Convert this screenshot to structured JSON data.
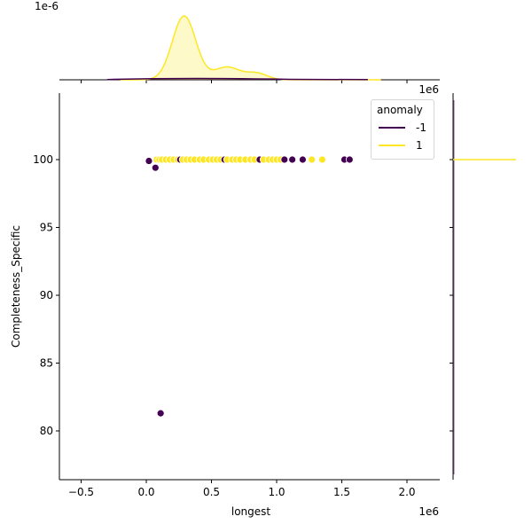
{
  "chart_data": {
    "type": "scatter",
    "title": "",
    "xlabel": "longest",
    "ylabel": "Completeness_Specific",
    "x_offset_label": "1e6",
    "top_marginal_offset_label": "1e-6",
    "top_marginal_x_offset_label": "1e6",
    "xlim": [
      -0.67,
      2.25
    ],
    "ylim": [
      76.5,
      104.8
    ],
    "x_ticks": [
      "-0.5",
      "0.0",
      "0.5",
      "1.0",
      "1.5",
      "2.0"
    ],
    "y_ticks": [
      "80",
      "85",
      "90",
      "95",
      "100"
    ],
    "legend": {
      "title": "anomaly",
      "position": "upper right",
      "entries": [
        {
          "label": "-1",
          "color": "#440154"
        },
        {
          "label": "1",
          "color": "#fde725"
        }
      ]
    },
    "series": [
      {
        "name": "-1",
        "color": "#440154",
        "points": [
          {
            "x": 0.02,
            "y": 99.9
          },
          {
            "x": 0.07,
            "y": 99.4
          },
          {
            "x": 0.11,
            "y": 81.3
          },
          {
            "x": 0.26,
            "y": 100
          },
          {
            "x": 0.6,
            "y": 100
          },
          {
            "x": 0.87,
            "y": 100
          },
          {
            "x": 1.06,
            "y": 100
          },
          {
            "x": 1.12,
            "y": 100
          },
          {
            "x": 1.2,
            "y": 100
          },
          {
            "x": 1.52,
            "y": 100
          },
          {
            "x": 1.56,
            "y": 100
          }
        ]
      },
      {
        "name": "1",
        "color": "#fde725",
        "points": [
          {
            "x": 0.08,
            "y": 100
          },
          {
            "x": 0.1,
            "y": 100
          },
          {
            "x": 0.12,
            "y": 100
          },
          {
            "x": 0.15,
            "y": 100
          },
          {
            "x": 0.18,
            "y": 100
          },
          {
            "x": 0.21,
            "y": 100
          },
          {
            "x": 0.24,
            "y": 100
          },
          {
            "x": 0.28,
            "y": 100
          },
          {
            "x": 0.31,
            "y": 100
          },
          {
            "x": 0.34,
            "y": 100
          },
          {
            "x": 0.37,
            "y": 100
          },
          {
            "x": 0.41,
            "y": 100
          },
          {
            "x": 0.44,
            "y": 100
          },
          {
            "x": 0.48,
            "y": 100
          },
          {
            "x": 0.51,
            "y": 100
          },
          {
            "x": 0.54,
            "y": 100
          },
          {
            "x": 0.57,
            "y": 100
          },
          {
            "x": 0.62,
            "y": 100
          },
          {
            "x": 0.66,
            "y": 100
          },
          {
            "x": 0.69,
            "y": 100
          },
          {
            "x": 0.72,
            "y": 100
          },
          {
            "x": 0.76,
            "y": 100
          },
          {
            "x": 0.8,
            "y": 100
          },
          {
            "x": 0.83,
            "y": 100
          },
          {
            "x": 0.9,
            "y": 100
          },
          {
            "x": 0.94,
            "y": 100
          },
          {
            "x": 0.97,
            "y": 100
          },
          {
            "x": 1.0,
            "y": 100
          },
          {
            "x": 1.03,
            "y": 100
          },
          {
            "x": 1.27,
            "y": 100
          },
          {
            "x": 1.35,
            "y": 100
          }
        ]
      }
    ],
    "marginal_x_kde": {
      "series": [
        {
          "name": "1",
          "color": "#fde725",
          "peak_x": 0.29,
          "shoulders": [
            0.65,
            0.87
          ]
        },
        {
          "name": "-1",
          "color": "#440154",
          "note": "near-flat"
        }
      ]
    },
    "marginal_y_kde": {
      "series": [
        {
          "name": "1",
          "color": "#fde725",
          "spike_y": 100
        },
        {
          "name": "-1",
          "color": "#440154",
          "note": "near-flat"
        }
      ]
    }
  }
}
